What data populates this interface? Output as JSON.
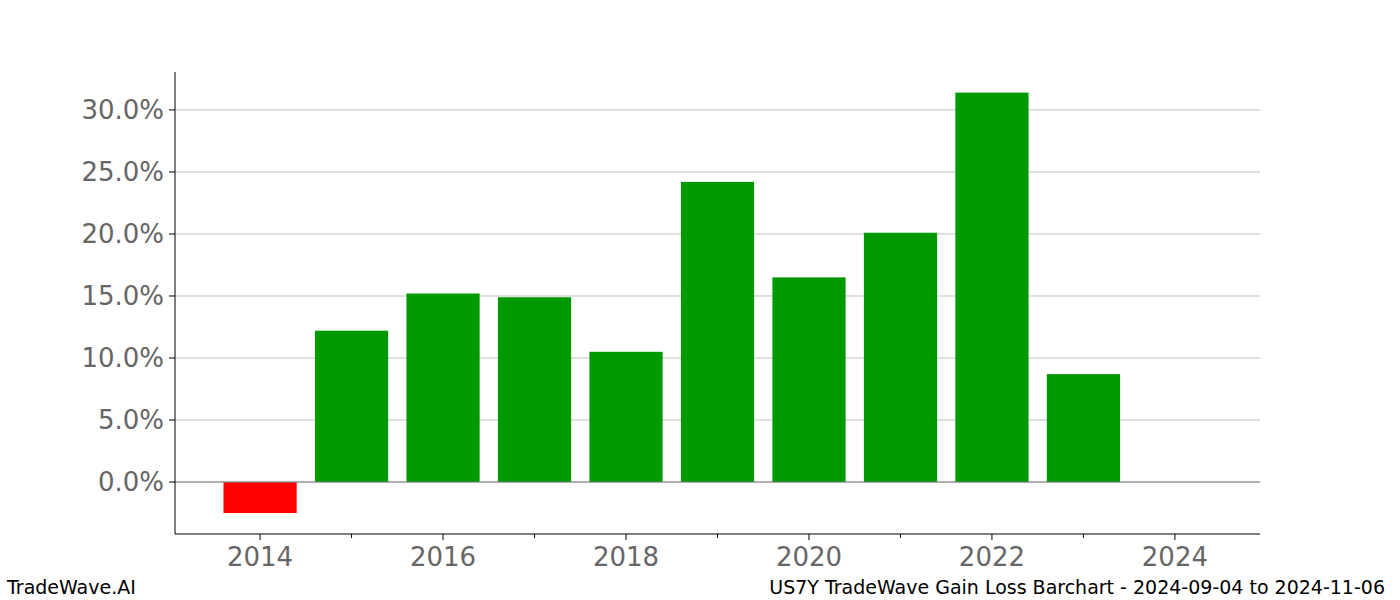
{
  "chart_data": {
    "type": "bar",
    "title": "US7Y TradeWave Gain Loss Barchart - 2024-09-04 to 2024-11-06",
    "annotations": [
      "TradeWave.AI"
    ],
    "x": [
      2014,
      2015,
      2016,
      2017,
      2018,
      2019,
      2020,
      2021,
      2022,
      2023
    ],
    "values": [
      -2.5,
      12.2,
      15.2,
      14.9,
      10.5,
      24.2,
      16.5,
      20.1,
      31.4,
      8.7
    ],
    "colors": [
      "#ff0000",
      "#009900",
      "#009900",
      "#009900",
      "#009900",
      "#009900",
      "#009900",
      "#009900",
      "#009900",
      "#009900"
    ],
    "xlim": [
      2013.07,
      2024.93
    ],
    "xticks": [
      2014,
      2016,
      2018,
      2020,
      2022,
      2024
    ],
    "ylim": [
      -4.19,
      33.06
    ],
    "yticks": [
      {
        "value": 0,
        "label": "0.0%"
      },
      {
        "value": 5,
        "label": "5.0%"
      },
      {
        "value": 10,
        "label": "10.0%"
      },
      {
        "value": 15,
        "label": "15.0%"
      },
      {
        "value": 20,
        "label": "20.0%"
      },
      {
        "value": 25,
        "label": "25.0%"
      },
      {
        "value": 30,
        "label": "30.0%"
      }
    ],
    "grid": true
  }
}
